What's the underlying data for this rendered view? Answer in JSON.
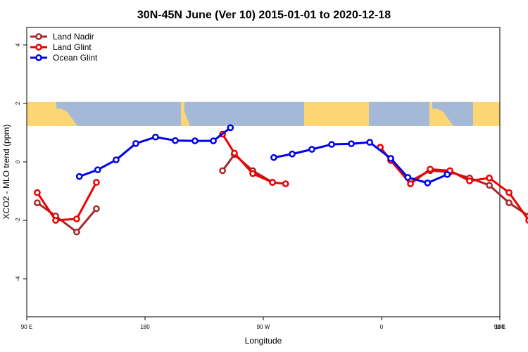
{
  "chart_data": {
    "type": "line",
    "title": "30N-45N June (Ver 10)   2015-01-01 to 2020-12-18",
    "xlabel": "Longitude",
    "ylabel": "XCO2 - MLO trend (ppm)",
    "xlim": [
      90,
      450
    ],
    "ylim": [
      -5.3,
      4.6
    ],
    "x_ticks": [
      {
        "value": 90,
        "label": "90 E"
      },
      {
        "value": 180,
        "label": "180"
      },
      {
        "value": 270,
        "label": "90 W"
      },
      {
        "value": 360,
        "label": "0"
      },
      {
        "value": 450,
        "label": "90 E"
      },
      {
        "value": 540,
        "label": "180"
      }
    ],
    "y_ticks": [
      {
        "value": -4,
        "label": "-4"
      },
      {
        "value": -2,
        "label": "-2"
      },
      {
        "value": 0,
        "label": "0"
      },
      {
        "value": 2,
        "label": "2"
      },
      {
        "value": 4,
        "label": "4"
      }
    ],
    "legend_position": "top-left",
    "series": [
      {
        "name": "Land Nadir",
        "color": "#a52a2a",
        "segments": [
          {
            "x": [
              98,
              112,
              128,
              143
            ],
            "y": [
              -1.4,
              -1.85,
              -2.4,
              -1.6
            ]
          },
          {
            "x": [
              239,
              248,
              262,
              277
            ],
            "y": [
              -0.3,
              0.25,
              -0.3,
              -0.7
            ]
          },
          {
            "x": [
              359,
              367,
              382,
              397,
              412,
              427,
              442,
              457,
              472,
              487,
              502,
              517
            ],
            "y": [
              0.5,
              0.05,
              -0.65,
              -0.3,
              -0.35,
              -0.55,
              -0.8,
              -1.4,
              -1.85,
              -2.4,
              -1.6,
              null
            ]
          }
        ]
      },
      {
        "name": "Land Glint",
        "color": "#ee0000",
        "segments": [
          {
            "x": [
              98,
              112,
              128,
              143
            ],
            "y": [
              -1.05,
              -2.0,
              -1.95,
              -0.7
            ]
          },
          {
            "x": [
              239,
              248,
              262,
              277,
              287
            ],
            "y": [
              0.95,
              0.3,
              -0.4,
              -0.7,
              -0.75
            ]
          },
          {
            "x": [
              359,
              367,
              382,
              397,
              412,
              427,
              442,
              457,
              472,
              487,
              502
            ],
            "y": [
              0.5,
              0.05,
              -0.75,
              -0.25,
              -0.3,
              -0.65,
              -0.55,
              -1.05,
              -2.0,
              -1.95,
              -0.7
            ]
          }
        ]
      },
      {
        "name": "Ocean Glint",
        "color": "#0000ee",
        "segments": [
          {
            "x": [
              130,
              144,
              158,
              173,
              188,
              203,
              218,
              232,
              245
            ],
            "y": [
              -0.5,
              -0.27,
              0.07,
              0.63,
              0.85,
              0.73,
              0.72,
              0.72,
              1.17
            ]
          },
          {
            "x": [
              278,
              292,
              307,
              322,
              337,
              351,
              367,
              380,
              395,
              410
            ],
            "y": [
              0.15,
              0.27,
              0.43,
              0.6,
              0.62,
              0.67,
              0.12,
              -0.53,
              -0.72,
              -0.43
            ]
          },
          {
            "x": [
              508,
              522,
              537,
              552
            ],
            "y": [
              -0.5,
              -0.27,
              0.07,
              0.63
            ]
          }
        ]
      }
    ],
    "map_band": {
      "y_top": 2.05,
      "y_bottom": 1.23,
      "ocean_color": "#a4b8d8",
      "land_color": "#fcd673"
    }
  }
}
